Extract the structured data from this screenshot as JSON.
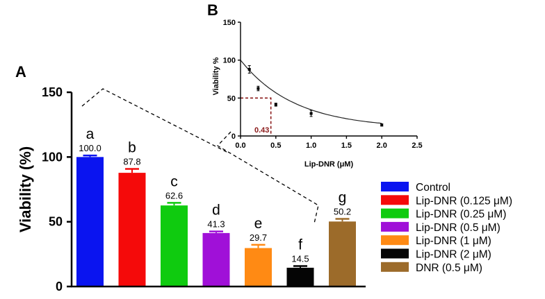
{
  "chart_data": [
    {
      "panel": "A",
      "type": "bar",
      "ylabel": "Viability (%)",
      "xlabel": "",
      "ylim": [
        0,
        150
      ],
      "yticks": [
        0,
        50,
        100,
        150
      ],
      "categories": [
        "Control",
        "Lip-DNR (0.125 μM)",
        "Lip-DNR (0.25 μM)",
        "Lip-DNR (0.5 μM)",
        "Lip-DNR (1 μM)",
        "Lip-DNR (2 μM)",
        "DNR (0.5 μM)"
      ],
      "values": [
        100.0,
        87.8,
        62.6,
        41.3,
        29.7,
        14.5,
        50.2
      ],
      "value_labels": [
        "100.0",
        "87.8",
        "62.6",
        "41.3",
        "29.7",
        "14.5",
        "50.2"
      ],
      "errors": [
        1.2,
        3.0,
        2.0,
        1.2,
        2.5,
        1.3,
        2.0
      ],
      "significance_letters": [
        "a",
        "b",
        "c",
        "d",
        "e",
        "f",
        "g"
      ],
      "colors": [
        "#0a14f0",
        "#f50a0a",
        "#0fcb0f",
        "#a010d8",
        "#ff8a14",
        "#050505",
        "#9c6b2a"
      ],
      "legend": [
        "Control",
        "Lip-DNR (0.125 μM)",
        "Lip-DNR (0.25 μM)",
        "Lip-DNR (0.5 μM)",
        "Lip-DNR (1 μM)",
        "Lip-DNR (2 μM)",
        "DNR (0.5 μM)"
      ],
      "legend_position": "right"
    },
    {
      "panel": "B",
      "type": "scatter",
      "xlabel": "Lip-DNR (μM)",
      "ylabel": "Viability %",
      "xlim": [
        0,
        2.5
      ],
      "ylim": [
        0,
        150
      ],
      "xticks": [
        0.0,
        0.5,
        1.0,
        1.5,
        2.0,
        2.5
      ],
      "xtick_labels": [
        "0.0",
        "0.5",
        "1.0",
        "1.5",
        "2.0",
        "2.5"
      ],
      "yticks": [
        0,
        50,
        100,
        150
      ],
      "x": [
        0.125,
        0.25,
        0.5,
        1.0,
        2.0
      ],
      "y": [
        87.8,
        62.6,
        41.3,
        29.7,
        14.5
      ],
      "errors": [
        5,
        3,
        2,
        4,
        1.5
      ],
      "fit_curve": {
        "model": "exponential decay",
        "y0": 100,
        "plateau": 10,
        "k": 1.3
      },
      "annotation": {
        "label": "0.43",
        "x": 0.43,
        "y": 50
      }
    }
  ]
}
